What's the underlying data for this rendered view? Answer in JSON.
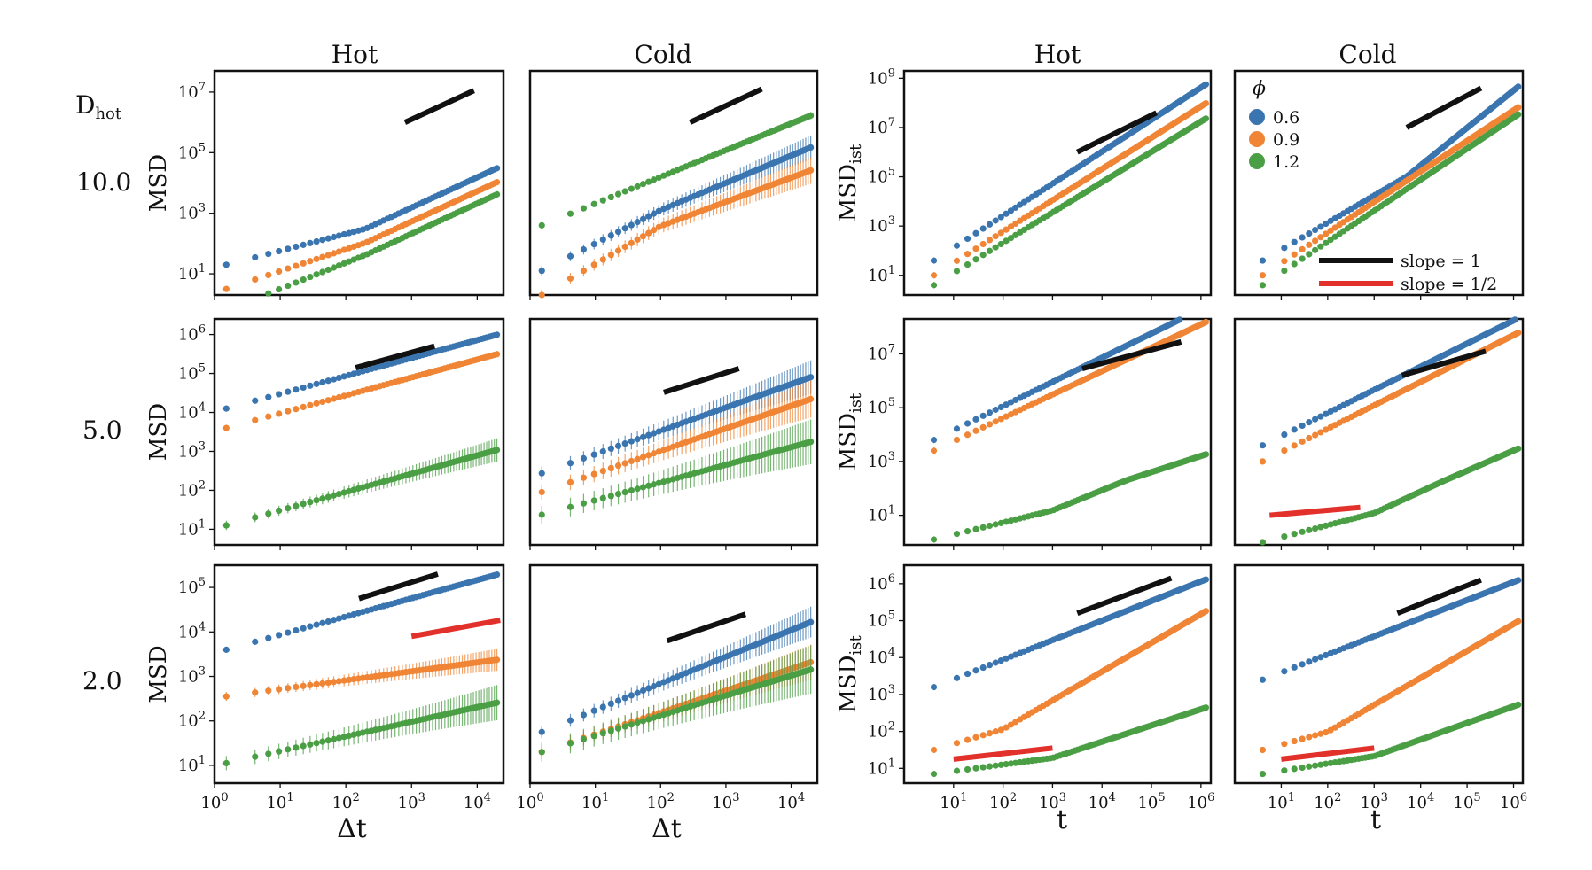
{
  "figure": {
    "row_header": "D",
    "row_header_sub": "hot",
    "rows": [
      "10.0",
      "5.0",
      "2.0"
    ],
    "col_titles": [
      "Hot",
      "Cold",
      "Hot",
      "Cold"
    ],
    "xlabel_left": "Δt",
    "xlabel_right": "t",
    "ylabel_left": "MSD",
    "ylabel_right_main": "MSD",
    "ylabel_right_sub": "ist",
    "colors": {
      "phi_0.6": "#3a75b0",
      "phi_0.9": "#ef8535",
      "phi_1.2": "#4a9e44",
      "slope1": "#111111",
      "slope_half": "#e2302b"
    },
    "legend": {
      "title": "ϕ",
      "entries": [
        {
          "label": "0.6",
          "color": "#3a75b0"
        },
        {
          "label": "0.9",
          "color": "#ef8535"
        },
        {
          "label": "1.2",
          "color": "#4a9e44"
        }
      ],
      "lines": [
        {
          "label": "slope = 1",
          "color": "#111111"
        },
        {
          "label": "slope = 1/2",
          "color": "#e2302b"
        }
      ]
    }
  },
  "chart_data": [
    {
      "type": "scatter",
      "row": 0,
      "col": 0,
      "title": "Hot",
      "xlabel": "Δt",
      "ylabel": "MSD",
      "xlog": [
        0,
        4.4
      ],
      "ylog": [
        0.3,
        7.7
      ],
      "yticks": [
        1,
        3,
        5,
        7
      ],
      "xticks": [
        0,
        1,
        2,
        3,
        4
      ],
      "xticklabels": false,
      "series": [
        {
          "name": "0.6",
          "y0": 1.3,
          "segs": [
            [
              2.3,
              0.56
            ],
            [
              4.3,
              1.0
            ]
          ],
          "err": 0.0
        },
        {
          "name": "0.9",
          "y0": 0.5,
          "segs": [
            [
              2.3,
              0.72
            ],
            [
              4.3,
              1.0
            ]
          ],
          "err": 0.0
        },
        {
          "name": "1.2",
          "y0": -0.2,
          "segs": [
            [
              2.3,
              0.86
            ],
            [
              4.3,
              1.0
            ]
          ],
          "err": 0.0
        }
      ],
      "guides": [
        {
          "color": "slope1",
          "x1": 2.9,
          "x2": 3.95,
          "y1": 6.0,
          "slope": 1
        }
      ]
    },
    {
      "type": "scatter",
      "row": 0,
      "col": 1,
      "title": "Cold",
      "xlabel": "Δt",
      "ylabel": "",
      "xlog": [
        0,
        4.4
      ],
      "ylog": [
        0.3,
        7.7
      ],
      "yticks": [],
      "xticks": [
        0,
        1,
        2,
        3,
        4
      ],
      "xticklabels": false,
      "series": [
        {
          "name": "0.6",
          "y0": 1.1,
          "segs": [
            [
              2.0,
              1.1
            ],
            [
              4.3,
              0.9
            ]
          ],
          "err": 0.4
        },
        {
          "name": "0.9",
          "y0": 0.3,
          "segs": [
            [
              2.0,
              1.25
            ],
            [
              4.3,
              0.8
            ]
          ],
          "err": 0.45
        },
        {
          "name": "1.2",
          "y0": 2.6,
          "segs": [
            [
              4.3,
              0.88
            ]
          ],
          "err": 0.12
        }
      ],
      "guides": [
        {
          "color": "slope1",
          "x1": 2.45,
          "x2": 3.55,
          "y1": 6.0,
          "slope": 1
        }
      ]
    },
    {
      "type": "scatter",
      "row": 0,
      "col": 2,
      "title": "Hot",
      "xlabel": "t",
      "ylabel": "MSD_ist",
      "xlog": [
        0,
        6.2
      ],
      "ylog": [
        0.2,
        9.3
      ],
      "yticks": [
        1,
        3,
        5,
        7,
        9
      ],
      "xticks": [
        1,
        2,
        3,
        4,
        5,
        6
      ],
      "xticklabels": false,
      "series": [
        {
          "name": "0.6",
          "y0": 1.6,
          "segs": [
            [
              6.0,
              1.3
            ]
          ],
          "err": 0.0,
          "x0": 0.6
        },
        {
          "name": "0.9",
          "y0": 1.0,
          "segs": [
            [
              6.0,
              1.27
            ]
          ],
          "err": 0.0,
          "x0": 0.6
        },
        {
          "name": "1.2",
          "y0": 0.6,
          "segs": [
            [
              6.0,
              1.23
            ]
          ],
          "err": 0.0,
          "x0": 0.6
        }
      ],
      "guides": [
        {
          "color": "slope1",
          "x1": 3.5,
          "x2": 5.1,
          "y1": 6.0,
          "slope": 1
        }
      ]
    },
    {
      "type": "scatter",
      "row": 0,
      "col": 3,
      "title": "Cold",
      "xlabel": "t",
      "ylabel": "",
      "xlog": [
        0,
        6.2
      ],
      "ylog": [
        0.2,
        9.3
      ],
      "yticks": [],
      "xticks": [
        1,
        2,
        3,
        4,
        5,
        6
      ],
      "xticklabels": false,
      "series": [
        {
          "name": "0.6",
          "y0": 1.6,
          "segs": [
            [
              3.7,
              1.1
            ],
            [
              6.0,
              1.52
            ]
          ],
          "err": 0.0,
          "x0": 0.6
        },
        {
          "name": "0.9",
          "y0": 1.0,
          "segs": [
            [
              6.0,
              1.24
            ]
          ],
          "err": 0.0,
          "x0": 0.6
        },
        {
          "name": "1.2",
          "y0": 0.6,
          "segs": [
            [
              6.0,
              1.26
            ]
          ],
          "err": 0.0,
          "x0": 0.6
        }
      ],
      "guides": [
        {
          "color": "slope1",
          "x1": 3.7,
          "x2": 5.3,
          "y1": 7.0,
          "slope": 1
        }
      ]
    },
    {
      "type": "scatter",
      "row": 1,
      "col": 0,
      "title": "",
      "xlabel": "Δt",
      "ylabel": "MSD",
      "xlog": [
        0,
        4.4
      ],
      "ylog": [
        0.6,
        6.4
      ],
      "yticks": [
        1,
        2,
        3,
        4,
        5,
        6
      ],
      "xticks": [
        0,
        1,
        2,
        3,
        4
      ],
      "xticklabels": false,
      "series": [
        {
          "name": "0.6",
          "y0": 4.1,
          "segs": [
            [
              4.3,
              0.46
            ]
          ],
          "err": 0.0
        },
        {
          "name": "0.9",
          "y0": 3.6,
          "segs": [
            [
              4.3,
              0.46
            ]
          ],
          "err": 0.0
        },
        {
          "name": "1.2",
          "y0": 1.1,
          "segs": [
            [
              4.3,
              0.47
            ]
          ],
          "err": 0.3
        }
      ],
      "guides": [
        {
          "color": "slope1",
          "x1": 2.15,
          "x2": 3.35,
          "y1": 5.15,
          "slope": 0.46
        }
      ]
    },
    {
      "type": "scatter",
      "row": 1,
      "col": 1,
      "title": "",
      "xlabel": "Δt",
      "ylabel": "",
      "xlog": [
        0,
        4.4
      ],
      "ylog": [
        0.5,
        6.5
      ],
      "yticks": [],
      "xticks": [
        0,
        1,
        2,
        3,
        4
      ],
      "xticklabels": false,
      "series": [
        {
          "name": "0.6",
          "y0": 2.4,
          "segs": [
            [
              4.3,
              0.62
            ]
          ],
          "err": 0.45
        },
        {
          "name": "0.9",
          "y0": 1.9,
          "segs": [
            [
              4.3,
              0.6
            ]
          ],
          "err": 0.5
        },
        {
          "name": "1.2",
          "y0": 1.3,
          "segs": [
            [
              4.3,
              0.47
            ]
          ],
          "err": 0.6
        }
      ],
      "guides": [
        {
          "color": "slope1",
          "x1": 2.05,
          "x2": 3.2,
          "y1": 4.55,
          "slope": 0.55
        }
      ]
    },
    {
      "type": "scatter",
      "row": 1,
      "col": 2,
      "title": "",
      "xlabel": "t",
      "ylabel": "MSD_ist",
      "xlog": [
        0,
        6.2
      ],
      "ylog": [
        -0.1,
        8.3
      ],
      "yticks": [
        1,
        3,
        5,
        7
      ],
      "xticks": [
        1,
        2,
        3,
        4,
        5,
        6
      ],
      "xticklabels": false,
      "series": [
        {
          "name": "0.6",
          "y0": 3.8,
          "segs": [
            [
              6.0,
              0.9
            ]
          ],
          "err": 0.0,
          "x0": 0.6
        },
        {
          "name": "0.9",
          "y0": 3.4,
          "segs": [
            [
              6.0,
              0.87
            ]
          ],
          "err": 0.0,
          "x0": 0.6
        },
        {
          "name": "1.2",
          "y0": 0.1,
          "segs": [
            [
              3.0,
              0.45
            ],
            [
              4.5,
              0.75
            ],
            [
              6.0,
              0.6
            ]
          ],
          "err": 0.0,
          "x0": 0.6
        }
      ],
      "guides": [
        {
          "color": "slope1",
          "x1": 3.6,
          "x2": 5.6,
          "y1": 6.45,
          "slope": 0.5
        }
      ]
    },
    {
      "type": "scatter",
      "row": 1,
      "col": 3,
      "title": "",
      "xlabel": "t",
      "ylabel": "",
      "xlog": [
        0,
        6.2
      ],
      "ylog": [
        -0.1,
        8.3
      ],
      "yticks": [],
      "xticks": [
        1,
        2,
        3,
        4,
        5,
        6
      ],
      "xticklabels": false,
      "series": [
        {
          "name": "0.6",
          "y0": 3.6,
          "segs": [
            [
              6.0,
              0.86
            ]
          ],
          "err": 0.0,
          "x0": 0.6
        },
        {
          "name": "0.9",
          "y0": 3.0,
          "segs": [
            [
              6.0,
              0.87
            ]
          ],
          "err": 0.0,
          "x0": 0.6
        },
        {
          "name": "1.2",
          "y0": 0.0,
          "segs": [
            [
              3.0,
              0.45
            ],
            [
              4.5,
              0.8
            ],
            [
              6.0,
              0.75
            ]
          ],
          "err": 0.0,
          "x0": 0.6
        }
      ],
      "guides": [
        {
          "color": "slope1",
          "x1": 3.6,
          "x2": 5.4,
          "y1": 6.2,
          "slope": 0.5
        },
        {
          "color": "slope_half",
          "x1": 0.75,
          "x2": 2.7,
          "y1": 1.0,
          "slope": 0.15
        }
      ]
    },
    {
      "type": "scatter",
      "row": 2,
      "col": 0,
      "title": "",
      "xlabel": "Δt",
      "ylabel": "MSD",
      "xlog": [
        0,
        4.4
      ],
      "ylog": [
        0.6,
        5.5
      ],
      "yticks": [
        1,
        2,
        3,
        4,
        5
      ],
      "xticks": [
        0,
        1,
        2,
        3,
        4
      ],
      "xticklabels": true,
      "series": [
        {
          "name": "0.6",
          "y0": 3.6,
          "segs": [
            [
              4.3,
              0.41
            ]
          ],
          "err": 0.0
        },
        {
          "name": "0.9",
          "y0": 2.55,
          "segs": [
            [
              4.3,
              0.2
            ]
          ],
          "err": 0.25
        },
        {
          "name": "1.2",
          "y0": 1.05,
          "segs": [
            [
              4.3,
              0.33
            ]
          ],
          "err": 0.4
        }
      ],
      "guides": [
        {
          "color": "slope1",
          "x1": 2.2,
          "x2": 3.4,
          "y1": 4.75,
          "slope": 0.46
        },
        {
          "color": "slope_half",
          "x1": 3.0,
          "x2": 4.35,
          "y1": 3.9,
          "slope": 0.27
        }
      ]
    },
    {
      "type": "scatter",
      "row": 2,
      "col": 1,
      "title": "",
      "xlabel": "Δt",
      "ylabel": "",
      "xlog": [
        0,
        4.4
      ],
      "ylog": [
        0.6,
        5.5
      ],
      "yticks": [],
      "xticks": [
        0,
        1,
        2,
        3,
        4
      ],
      "xticklabels": true,
      "series": [
        {
          "name": "0.6",
          "y0": 1.75,
          "segs": [
            [
              4.3,
              0.6
            ]
          ],
          "err": 0.35
        },
        {
          "name": "0.9",
          "y0": 1.3,
          "segs": [
            [
              4.3,
              0.49
            ]
          ],
          "err": 0.4
        },
        {
          "name": "1.2",
          "y0": 1.3,
          "segs": [
            [
              4.3,
              0.45
            ]
          ],
          "err": 0.55
        }
      ],
      "guides": [
        {
          "color": "slope1",
          "x1": 2.1,
          "x2": 3.3,
          "y1": 3.8,
          "slope": 0.5
        }
      ]
    },
    {
      "type": "scatter",
      "row": 2,
      "col": 2,
      "title": "",
      "xlabel": "t",
      "ylabel": "MSD_ist",
      "xlog": [
        0,
        6.2
      ],
      "ylog": [
        0.6,
        6.5
      ],
      "yticks": [
        1,
        2,
        3,
        4,
        5,
        6
      ],
      "xticks": [
        1,
        2,
        3,
        4,
        5,
        6
      ],
      "xticklabels": true,
      "series": [
        {
          "name": "0.6",
          "y0": 3.2,
          "segs": [
            [
              6.0,
              0.53
            ]
          ],
          "err": 0.0,
          "x0": 0.6
        },
        {
          "name": "0.9",
          "y0": 1.5,
          "segs": [
            [
              2.0,
              0.4
            ],
            [
              6.0,
              0.78
            ]
          ],
          "err": 0.0,
          "x0": 0.6
        },
        {
          "name": "1.2",
          "y0": 0.85,
          "segs": [
            [
              3.0,
              0.18
            ],
            [
              6.0,
              0.44
            ]
          ],
          "err": 0.0,
          "x0": 0.6
        }
      ],
      "guides": [
        {
          "color": "slope1",
          "x1": 3.5,
          "x2": 5.4,
          "y1": 5.2,
          "slope": 0.5
        },
        {
          "color": "slope_half",
          "x1": 1.0,
          "x2": 3.0,
          "y1": 1.25,
          "slope": 0.15
        }
      ]
    },
    {
      "type": "scatter",
      "row": 2,
      "col": 3,
      "title": "",
      "xlabel": "t",
      "ylabel": "",
      "xlog": [
        0,
        6.2
      ],
      "ylog": [
        0.6,
        6.5
      ],
      "yticks": [],
      "xticks": [
        1,
        2,
        3,
        4,
        5,
        6
      ],
      "xticklabels": true,
      "series": [
        {
          "name": "0.6",
          "y0": 3.4,
          "segs": [
            [
              6.0,
              0.49
            ]
          ],
          "err": 0.0,
          "x0": 0.6
        },
        {
          "name": "0.9",
          "y0": 1.5,
          "segs": [
            [
              2.0,
              0.35
            ],
            [
              6.0,
              0.73
            ]
          ],
          "err": 0.0,
          "x0": 0.6
        },
        {
          "name": "1.2",
          "y0": 0.85,
          "segs": [
            [
              3.0,
              0.2
            ],
            [
              6.0,
              0.45
            ]
          ],
          "err": 0.0,
          "x0": 0.6
        }
      ],
      "guides": [
        {
          "color": "slope1",
          "x1": 3.5,
          "x2": 5.3,
          "y1": 5.2,
          "slope": 0.5
        },
        {
          "color": "slope_half",
          "x1": 1.0,
          "x2": 3.0,
          "y1": 1.25,
          "slope": 0.15
        }
      ]
    }
  ]
}
